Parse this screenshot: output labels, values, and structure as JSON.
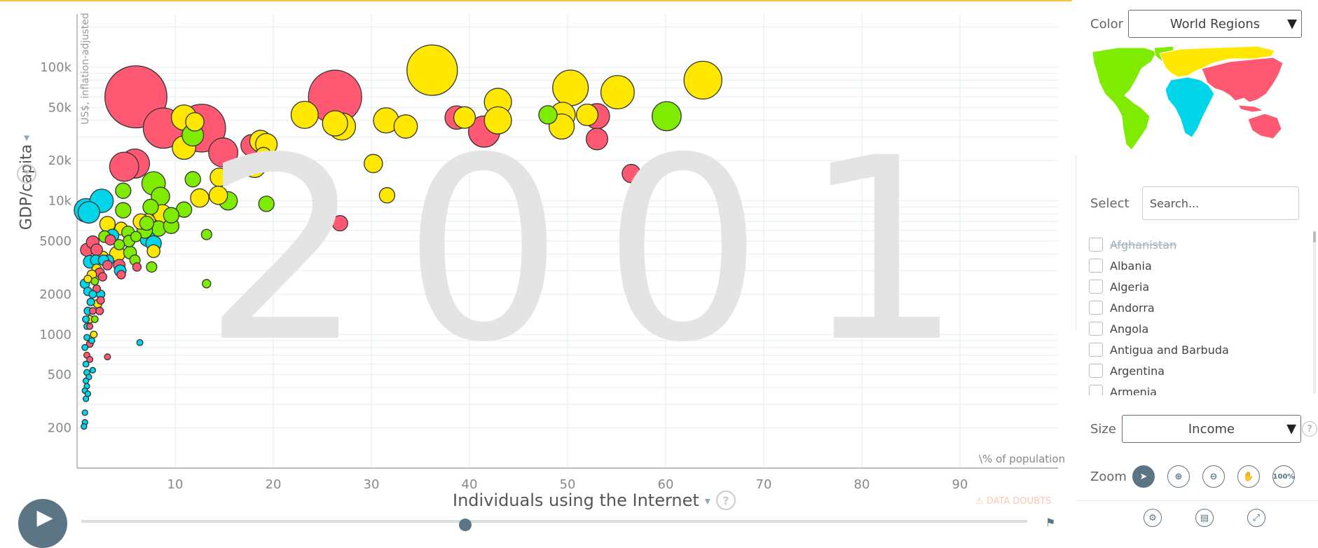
{
  "chart": {
    "year": "2001",
    "y_title": "GDP/capita",
    "y_unit": "US$, inflation-adjusted",
    "x_title": "Individuals using the Internet",
    "x_unit": "\\% of population",
    "data_doubts": "DATA DOUBTS",
    "help_glyph": "?",
    "caret_glyph": "▾"
  },
  "chart_data": {
    "type": "scatter",
    "x_label": "Individuals using the Internet",
    "y_label": "GDP/capita",
    "x_scale": "linear",
    "y_scale": "log",
    "xlim": [
      0,
      100
    ],
    "ylim": [
      100,
      250000
    ],
    "x_ticks": [
      10,
      20,
      30,
      40,
      50,
      60,
      70,
      80,
      90
    ],
    "x_tick_labels": [
      "10",
      "20",
      "30",
      "40",
      "50",
      "60",
      "70",
      "80",
      "90"
    ],
    "y_ticks": [
      200,
      500,
      1000,
      2000,
      5000,
      10000,
      20000,
      50000,
      100000
    ],
    "y_tick_labels": [
      "200",
      "500",
      "1000",
      "2000",
      "5000",
      "10k",
      "20k",
      "50k",
      "100k"
    ],
    "grid": "horizontal",
    "colors": {
      "yellow": "#ffe700",
      "red": "#ff5872",
      "green": "#7feb00",
      "cyan": "#00d5e9"
    },
    "points": [
      {
        "x": 36.2,
        "y": 95000,
        "c": "yellow",
        "s": 3.5
      },
      {
        "x": 26.3,
        "y": 60000,
        "c": "red",
        "s": 3.6
      },
      {
        "x": 6.0,
        "y": 60000,
        "c": "red",
        "s": 3.9
      },
      {
        "x": 63.8,
        "y": 80000,
        "c": "yellow",
        "s": 3.0
      },
      {
        "x": 50.3,
        "y": 70000,
        "c": "yellow",
        "s": 2.9
      },
      {
        "x": 55.1,
        "y": 65000,
        "c": "yellow",
        "s": 2.8
      },
      {
        "x": 42.9,
        "y": 55000,
        "c": "yellow",
        "s": 2.5
      },
      {
        "x": 23.2,
        "y": 44000,
        "c": "yellow",
        "s": 2.5
      },
      {
        "x": 27.0,
        "y": 36000,
        "c": "yellow",
        "s": 2.5
      },
      {
        "x": 26.3,
        "y": 38000,
        "c": "yellow",
        "s": 2.4
      },
      {
        "x": 31.5,
        "y": 40000,
        "c": "yellow",
        "s": 2.4
      },
      {
        "x": 33.5,
        "y": 36000,
        "c": "yellow",
        "s": 2.3
      },
      {
        "x": 41.5,
        "y": 33000,
        "c": "red",
        "s": 2.7
      },
      {
        "x": 38.7,
        "y": 42000,
        "c": "red",
        "s": 2.3
      },
      {
        "x": 39.5,
        "y": 42000,
        "c": "yellow",
        "s": 2.2
      },
      {
        "x": 42.9,
        "y": 40000,
        "c": "yellow",
        "s": 2.5
      },
      {
        "x": 48.0,
        "y": 44000,
        "c": "green",
        "s": 2.0
      },
      {
        "x": 49.5,
        "y": 44000,
        "c": "yellow",
        "s": 2.4
      },
      {
        "x": 52.0,
        "y": 44000,
        "c": "yellow",
        "s": 2.2
      },
      {
        "x": 53.0,
        "y": 43000,
        "c": "red",
        "s": 2.4
      },
      {
        "x": 53.0,
        "y": 29000,
        "c": "red",
        "s": 2.2
      },
      {
        "x": 49.4,
        "y": 36000,
        "c": "yellow",
        "s": 2.4
      },
      {
        "x": 60.1,
        "y": 43000,
        "c": "green",
        "s": 2.6
      },
      {
        "x": 56.5,
        "y": 16000,
        "c": "red",
        "s": 2.0
      },
      {
        "x": 30.2,
        "y": 19000,
        "c": "yellow",
        "s": 2.0
      },
      {
        "x": 31.6,
        "y": 11000,
        "c": "yellow",
        "s": 1.8
      },
      {
        "x": 26.8,
        "y": 6800,
        "c": "red",
        "s": 1.8
      },
      {
        "x": 8.8,
        "y": 35000,
        "c": "red",
        "s": 3.1
      },
      {
        "x": 12.7,
        "y": 35000,
        "c": "red",
        "s": 3.4
      },
      {
        "x": 10.9,
        "y": 42000,
        "c": "yellow",
        "s": 2.4
      },
      {
        "x": 12.0,
        "y": 39000,
        "c": "yellow",
        "s": 2.0
      },
      {
        "x": 11.8,
        "y": 31000,
        "c": "green",
        "s": 2.2
      },
      {
        "x": 10.9,
        "y": 25000,
        "c": "yellow",
        "s": 2.3
      },
      {
        "x": 5.9,
        "y": 19000,
        "c": "red",
        "s": 2.6
      },
      {
        "x": 4.8,
        "y": 18000,
        "c": "red",
        "s": 2.6
      },
      {
        "x": 14.9,
        "y": 23000,
        "c": "red",
        "s": 2.6
      },
      {
        "x": 17.8,
        "y": 26000,
        "c": "red",
        "s": 2.2
      },
      {
        "x": 18.7,
        "y": 28000,
        "c": "yellow",
        "s": 2.2
      },
      {
        "x": 19.3,
        "y": 26500,
        "c": "yellow",
        "s": 2.2
      },
      {
        "x": 19.0,
        "y": 22000,
        "c": "yellow",
        "s": 1.8
      },
      {
        "x": 18.1,
        "y": 18000,
        "c": "yellow",
        "s": 2.2
      },
      {
        "x": 14.5,
        "y": 15000,
        "c": "yellow",
        "s": 2.0
      },
      {
        "x": 15.4,
        "y": 10000,
        "c": "green",
        "s": 2.0
      },
      {
        "x": 19.3,
        "y": 9500,
        "c": "green",
        "s": 1.8
      },
      {
        "x": 14.4,
        "y": 11000,
        "c": "yellow",
        "s": 2.0
      },
      {
        "x": 12.5,
        "y": 10500,
        "c": "yellow",
        "s": 2.0
      },
      {
        "x": 11.8,
        "y": 14500,
        "c": "green",
        "s": 1.8
      },
      {
        "x": 10.9,
        "y": 8600,
        "c": "green",
        "s": 1.8
      },
      {
        "x": 8.5,
        "y": 10800,
        "c": "green",
        "s": 2.0
      },
      {
        "x": 7.8,
        "y": 13500,
        "c": "green",
        "s": 2.3
      },
      {
        "x": 7.5,
        "y": 9000,
        "c": "green",
        "s": 1.8
      },
      {
        "x": 7.2,
        "y": 7000,
        "c": "yellow",
        "s": 1.8
      },
      {
        "x": 8.7,
        "y": 8000,
        "c": "yellow",
        "s": 2.0
      },
      {
        "x": 8.3,
        "y": 6200,
        "c": "green",
        "s": 1.8
      },
      {
        "x": 7.2,
        "y": 5200,
        "c": "cyan",
        "s": 1.8
      },
      {
        "x": 7.8,
        "y": 4800,
        "c": "cyan",
        "s": 1.8
      },
      {
        "x": 6.9,
        "y": 6000,
        "c": "green",
        "s": 1.8
      },
      {
        "x": 7.1,
        "y": 6800,
        "c": "green",
        "s": 1.7
      },
      {
        "x": 7.8,
        "y": 4200,
        "c": "yellow",
        "s": 1.6
      },
      {
        "x": 7.6,
        "y": 3200,
        "c": "green",
        "s": 1.4
      },
      {
        "x": 9.6,
        "y": 6500,
        "c": "green",
        "s": 1.8
      },
      {
        "x": 9.6,
        "y": 7800,
        "c": "green",
        "s": 1.8
      },
      {
        "x": 4.7,
        "y": 11900,
        "c": "green",
        "s": 1.8
      },
      {
        "x": 4.7,
        "y": 8500,
        "c": "green",
        "s": 1.8
      },
      {
        "x": 3.1,
        "y": 6700,
        "c": "yellow",
        "s": 1.8
      },
      {
        "x": 6.5,
        "y": 7000,
        "c": "yellow",
        "s": 1.8
      },
      {
        "x": 4.5,
        "y": 6200,
        "c": "yellow",
        "s": 1.6
      },
      {
        "x": 3.6,
        "y": 5500,
        "c": "cyan",
        "s": 1.6
      },
      {
        "x": 2.8,
        "y": 5400,
        "c": "green",
        "s": 1.5
      },
      {
        "x": 3.4,
        "y": 5100,
        "c": "red",
        "s": 1.4
      },
      {
        "x": 5.2,
        "y": 5800,
        "c": "green",
        "s": 1.6
      },
      {
        "x": 5.3,
        "y": 5000,
        "c": "green",
        "s": 1.5
      },
      {
        "x": 6.0,
        "y": 5400,
        "c": "green",
        "s": 1.4
      },
      {
        "x": 4.3,
        "y": 4700,
        "c": "green",
        "s": 1.4
      },
      {
        "x": 4.1,
        "y": 4000,
        "c": "yellow",
        "s": 1.8
      },
      {
        "x": 5.4,
        "y": 4100,
        "c": "green",
        "s": 1.6
      },
      {
        "x": 4.3,
        "y": 3300,
        "c": "red",
        "s": 1.5
      },
      {
        "x": 4.4,
        "y": 3000,
        "c": "cyan",
        "s": 1.5
      },
      {
        "x": 3.2,
        "y": 3600,
        "c": "cyan",
        "s": 1.4
      },
      {
        "x": 2.6,
        "y": 3800,
        "c": "yellow",
        "s": 1.5
      },
      {
        "x": 5.9,
        "y": 3600,
        "c": "green",
        "s": 1.4
      },
      {
        "x": 6.1,
        "y": 3200,
        "c": "red",
        "s": 1.2
      },
      {
        "x": 4.5,
        "y": 2800,
        "c": "red",
        "s": 1.2
      },
      {
        "x": 1.0,
        "y": 4300,
        "c": "red",
        "s": 1.6
      },
      {
        "x": 1.6,
        "y": 4900,
        "c": "red",
        "s": 1.6
      },
      {
        "x": 2.0,
        "y": 4300,
        "c": "red",
        "s": 1.5
      },
      {
        "x": 1.3,
        "y": 3500,
        "c": "cyan",
        "s": 1.6
      },
      {
        "x": 1.9,
        "y": 3600,
        "c": "cyan",
        "s": 1.4
      },
      {
        "x": 2.7,
        "y": 3600,
        "c": "cyan",
        "s": 1.4
      },
      {
        "x": 3.1,
        "y": 3300,
        "c": "red",
        "s": 1.3
      },
      {
        "x": 2.0,
        "y": 3100,
        "c": "yellow",
        "s": 1.3
      },
      {
        "x": 2.3,
        "y": 2900,
        "c": "red",
        "s": 1.3
      },
      {
        "x": 1.5,
        "y": 2800,
        "c": "yellow",
        "s": 1.3
      },
      {
        "x": 2.6,
        "y": 2700,
        "c": "red",
        "s": 1.2
      },
      {
        "x": 1.8,
        "y": 2500,
        "c": "green",
        "s": 1.1
      },
      {
        "x": 1.1,
        "y": 2600,
        "c": "yellow",
        "s": 1.1
      },
      {
        "x": 0.8,
        "y": 2400,
        "c": "cyan",
        "s": 1.3
      },
      {
        "x": 2.0,
        "y": 2200,
        "c": "red",
        "s": 1.1
      },
      {
        "x": 1.1,
        "y": 2100,
        "c": "cyan",
        "s": 1.2
      },
      {
        "x": 1.6,
        "y": 2000,
        "c": "cyan",
        "s": 1.1
      },
      {
        "x": 2.4,
        "y": 2000,
        "c": "cyan",
        "s": 1.2
      },
      {
        "x": 2.4,
        "y": 1800,
        "c": "red",
        "s": 1.1
      },
      {
        "x": 1.4,
        "y": 1750,
        "c": "cyan",
        "s": 1.1
      },
      {
        "x": 2.1,
        "y": 1700,
        "c": "yellow",
        "s": 1.2
      },
      {
        "x": 1.1,
        "y": 1500,
        "c": "cyan",
        "s": 1.1
      },
      {
        "x": 1.6,
        "y": 1500,
        "c": "red",
        "s": 1.0
      },
      {
        "x": 2.3,
        "y": 1500,
        "c": "red",
        "s": 1.1
      },
      {
        "x": 1.3,
        "y": 1300,
        "c": "yellow",
        "s": 1.1
      },
      {
        "x": 1.8,
        "y": 1300,
        "c": "green",
        "s": 1.0
      },
      {
        "x": 0.9,
        "y": 1300,
        "c": "cyan",
        "s": 1.0
      },
      {
        "x": 1.0,
        "y": 1150,
        "c": "cyan",
        "s": 0.9
      },
      {
        "x": 1.3,
        "y": 1150,
        "c": "red",
        "s": 0.9
      },
      {
        "x": 1.7,
        "y": 1000,
        "c": "yellow",
        "s": 1.0
      },
      {
        "x": 1.0,
        "y": 950,
        "c": "cyan",
        "s": 0.9
      },
      {
        "x": 1.5,
        "y": 900,
        "c": "cyan",
        "s": 0.9
      },
      {
        "x": 1.3,
        "y": 850,
        "c": "red",
        "s": 1.0
      },
      {
        "x": 0.8,
        "y": 800,
        "c": "cyan",
        "s": 0.9
      },
      {
        "x": 1.0,
        "y": 700,
        "c": "red",
        "s": 0.9
      },
      {
        "x": 0.9,
        "y": 600,
        "c": "cyan",
        "s": 0.9
      },
      {
        "x": 1.3,
        "y": 650,
        "c": "red",
        "s": 0.9
      },
      {
        "x": 1.6,
        "y": 540,
        "c": "cyan",
        "s": 0.8
      },
      {
        "x": 1.0,
        "y": 520,
        "c": "cyan",
        "s": 0.9
      },
      {
        "x": 1.2,
        "y": 480,
        "c": "cyan",
        "s": 0.8
      },
      {
        "x": 0.9,
        "y": 450,
        "c": "cyan",
        "s": 0.8
      },
      {
        "x": 1.0,
        "y": 410,
        "c": "cyan",
        "s": 0.8
      },
      {
        "x": 0.8,
        "y": 380,
        "c": "cyan",
        "s": 0.8
      },
      {
        "x": 1.1,
        "y": 360,
        "c": "cyan",
        "s": 0.8
      },
      {
        "x": 0.9,
        "y": 330,
        "c": "cyan",
        "s": 0.8
      },
      {
        "x": 0.8,
        "y": 260,
        "c": "cyan",
        "s": 0.8
      },
      {
        "x": 0.8,
        "y": 220,
        "c": "cyan",
        "s": 0.7
      },
      {
        "x": 0.7,
        "y": 205,
        "c": "cyan",
        "s": 0.7
      },
      {
        "x": 6.4,
        "y": 870,
        "c": "cyan",
        "s": 0.9
      },
      {
        "x": 3.1,
        "y": 680,
        "c": "red",
        "s": 0.9
      },
      {
        "x": 13.2,
        "y": 2400,
        "c": "green",
        "s": 1.2
      },
      {
        "x": 13.2,
        "y": 5600,
        "c": "green",
        "s": 1.4
      },
      {
        "x": 0.9,
        "y": 8500,
        "c": "cyan",
        "s": 2.3
      },
      {
        "x": 2.5,
        "y": 10000,
        "c": "cyan",
        "s": 2.3
      },
      {
        "x": 1.2,
        "y": 8200,
        "c": "cyan",
        "s": 2.2
      }
    ]
  },
  "sidebar": {
    "color_label": "Color",
    "color_value": "World Regions",
    "select_label": "Select",
    "search_placeholder": "Search...",
    "countries": [
      {
        "name": "Afghanistan",
        "disabled": true
      },
      {
        "name": "Albania"
      },
      {
        "name": "Algeria"
      },
      {
        "name": "Andorra"
      },
      {
        "name": "Angola"
      },
      {
        "name": "Antigua and Barbuda"
      },
      {
        "name": "Argentina"
      },
      {
        "name": "Armenia"
      }
    ],
    "size_label": "Size",
    "size_value": "Income",
    "size_help": "?",
    "zoom_label": "Zoom",
    "zoom_100": "100%",
    "dropdown_caret": "▼"
  },
  "map_colors": {
    "americas": "#7feb00",
    "europe": "#ffe700",
    "africa": "#00d5e9",
    "asia": "#ff5872"
  }
}
